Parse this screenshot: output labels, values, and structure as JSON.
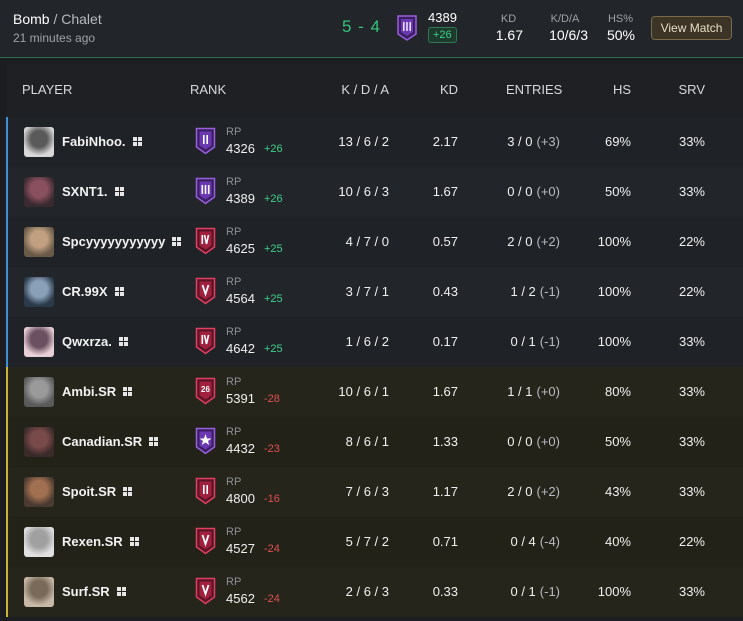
{
  "header": {
    "mode": "Bomb",
    "map": "Chalet",
    "separator": "/",
    "time_ago": "21 minutes ago",
    "score": "5 - 4",
    "rp": "4389",
    "rp_delta": "+26",
    "kd_label": "KD",
    "kd_value": "1.67",
    "kda_label": "K/D/A",
    "kda_value": "10/6/3",
    "hs_label": "HS%",
    "hs_value": "50%",
    "view_button": "View Match"
  },
  "columns": {
    "player": "PLAYER",
    "rank": "RANK",
    "kda": "K / D / A",
    "kd": "KD",
    "entries": "ENTRIES",
    "hs": "HS",
    "srv": "SRV"
  },
  "rp_label": "RP",
  "colors": {
    "team1": "#3e8fd6",
    "team2": "#c9b43a",
    "positive": "#3ed08a",
    "negative": "#e05050",
    "win_accent": "#35c47a"
  },
  "players": [
    {
      "name": "FabiNhoo.",
      "rank_icon": "rank-diamond-ii-icon",
      "rank_color": "#8a4fd1",
      "rp": "4326",
      "rp_delta": "+26",
      "kda": "13 / 6 / 2",
      "kd": "2.17",
      "entries": "3 / 0",
      "entries_diff": "(+3)",
      "hs": "69%",
      "srv": "33%",
      "team": "t1"
    },
    {
      "name": "SXNT1.",
      "rank_icon": "rank-diamond-iii-icon",
      "rank_color": "#8a4fd1",
      "rp": "4389",
      "rp_delta": "+26",
      "kda": "10 / 6 / 3",
      "kd": "1.67",
      "entries": "0 / 0",
      "entries_diff": "(+0)",
      "hs": "50%",
      "srv": "33%",
      "team": "t1"
    },
    {
      "name": "Spcyyyyyyyyyyy",
      "rank_icon": "rank-emerald-iv-icon",
      "rank_color": "#c8325a",
      "rp": "4625",
      "rp_delta": "+25",
      "kda": "4 / 7 / 0",
      "kd": "0.57",
      "entries": "2 / 0",
      "entries_diff": "(+2)",
      "hs": "100%",
      "srv": "22%",
      "team": "t1"
    },
    {
      "name": "CR.99X",
      "rank_icon": "rank-emerald-v-icon",
      "rank_color": "#c8325a",
      "rp": "4564",
      "rp_delta": "+25",
      "kda": "3 / 7 / 1",
      "kd": "0.43",
      "entries": "1 / 2",
      "entries_diff": "(-1)",
      "hs": "100%",
      "srv": "22%",
      "team": "t1"
    },
    {
      "name": "Qwxrza.",
      "rank_icon": "rank-emerald-iv-icon",
      "rank_color": "#c8325a",
      "rp": "4642",
      "rp_delta": "+25",
      "kda": "1 / 6 / 2",
      "kd": "0.17",
      "entries": "0 / 1",
      "entries_diff": "(-1)",
      "hs": "100%",
      "srv": "33%",
      "team": "t1"
    },
    {
      "name": "Ambi.SR",
      "rank_icon": "rank-champion-26-icon",
      "rank_color": "#c8325a",
      "rp": "5391",
      "rp_delta": "-28",
      "kda": "10 / 6 / 1",
      "kd": "1.67",
      "entries": "1 / 1",
      "entries_diff": "(+0)",
      "hs": "80%",
      "srv": "33%",
      "team": "t2"
    },
    {
      "name": "Canadian.SR",
      "rank_icon": "rank-diamond-star-icon",
      "rank_color": "#8a4fd1",
      "rp": "4432",
      "rp_delta": "-23",
      "kda": "8 / 6 / 1",
      "kd": "1.33",
      "entries": "0 / 0",
      "entries_diff": "(+0)",
      "hs": "50%",
      "srv": "33%",
      "team": "t2"
    },
    {
      "name": "Spoit.SR",
      "rank_icon": "rank-emerald-ii-icon",
      "rank_color": "#c8325a",
      "rp": "4800",
      "rp_delta": "-16",
      "kda": "7 / 6 / 3",
      "kd": "1.17",
      "entries": "2 / 0",
      "entries_diff": "(+2)",
      "hs": "43%",
      "srv": "33%",
      "team": "t2"
    },
    {
      "name": "Rexen.SR",
      "rank_icon": "rank-emerald-v-icon",
      "rank_color": "#c8325a",
      "rp": "4527",
      "rp_delta": "-24",
      "kda": "5 / 7 / 2",
      "kd": "0.71",
      "entries": "0 / 4",
      "entries_diff": "(-4)",
      "hs": "40%",
      "srv": "22%",
      "team": "t2"
    },
    {
      "name": "Surf.SR",
      "rank_icon": "rank-emerald-v-icon",
      "rank_color": "#c8325a",
      "rp": "4562",
      "rp_delta": "-24",
      "kda": "2 / 6 / 3",
      "kd": "0.33",
      "entries": "0 / 1",
      "entries_diff": "(-1)",
      "hs": "100%",
      "srv": "33%",
      "team": "t2"
    }
  ]
}
